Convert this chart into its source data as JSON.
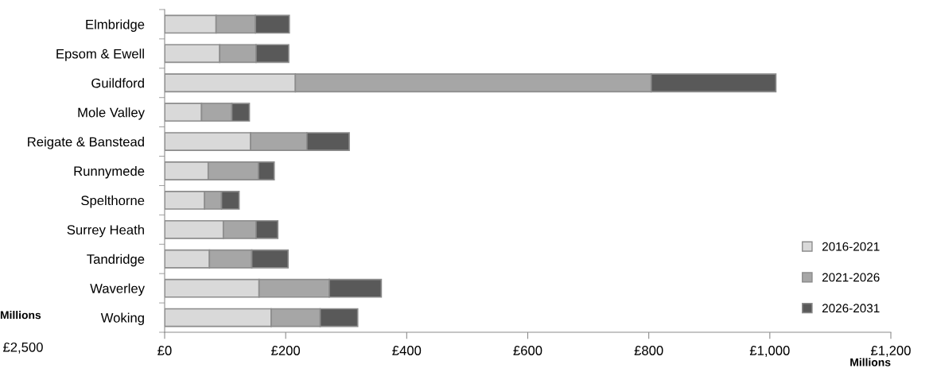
{
  "chart_data": {
    "type": "bar",
    "orientation": "horizontal",
    "stacked": true,
    "categories": [
      "Elmbridge",
      "Epsom & Ewell",
      "Guildford",
      "Mole Valley",
      "Reigate & Banstead",
      "Runnymede",
      "Spelthorne",
      "Surrey Heath",
      "Tandridge",
      "Waverley",
      "Woking"
    ],
    "series": [
      {
        "name": "2016-2021",
        "color": "#d9d9d9",
        "values": [
          85,
          91,
          216,
          61,
          142,
          72,
          66,
          97,
          74,
          156,
          176
        ]
      },
      {
        "name": "2021-2026",
        "color": "#a6a6a6",
        "values": [
          65,
          60,
          588,
          50,
          93,
          83,
          28,
          54,
          70,
          116,
          81
        ]
      },
      {
        "name": "2026-2031",
        "color": "#595959",
        "values": [
          56,
          54,
          206,
          29,
          70,
          26,
          29,
          36,
          60,
          86,
          62
        ]
      }
    ],
    "xlim": [
      0,
      1200
    ],
    "xticks": [
      {
        "value": 0,
        "label": "£0"
      },
      {
        "value": 200,
        "label": "£200"
      },
      {
        "value": 400,
        "label": "£400"
      },
      {
        "value": 600,
        "label": "£600"
      },
      {
        "value": 800,
        "label": "£800"
      },
      {
        "value": 1000,
        "label": "£1,000"
      },
      {
        "value": 1200,
        "label": "£1,200"
      }
    ],
    "xlabel": "Millions",
    "annotations": [
      "Millions",
      "£2,500"
    ],
    "grid": false,
    "legend": "bottom right"
  }
}
